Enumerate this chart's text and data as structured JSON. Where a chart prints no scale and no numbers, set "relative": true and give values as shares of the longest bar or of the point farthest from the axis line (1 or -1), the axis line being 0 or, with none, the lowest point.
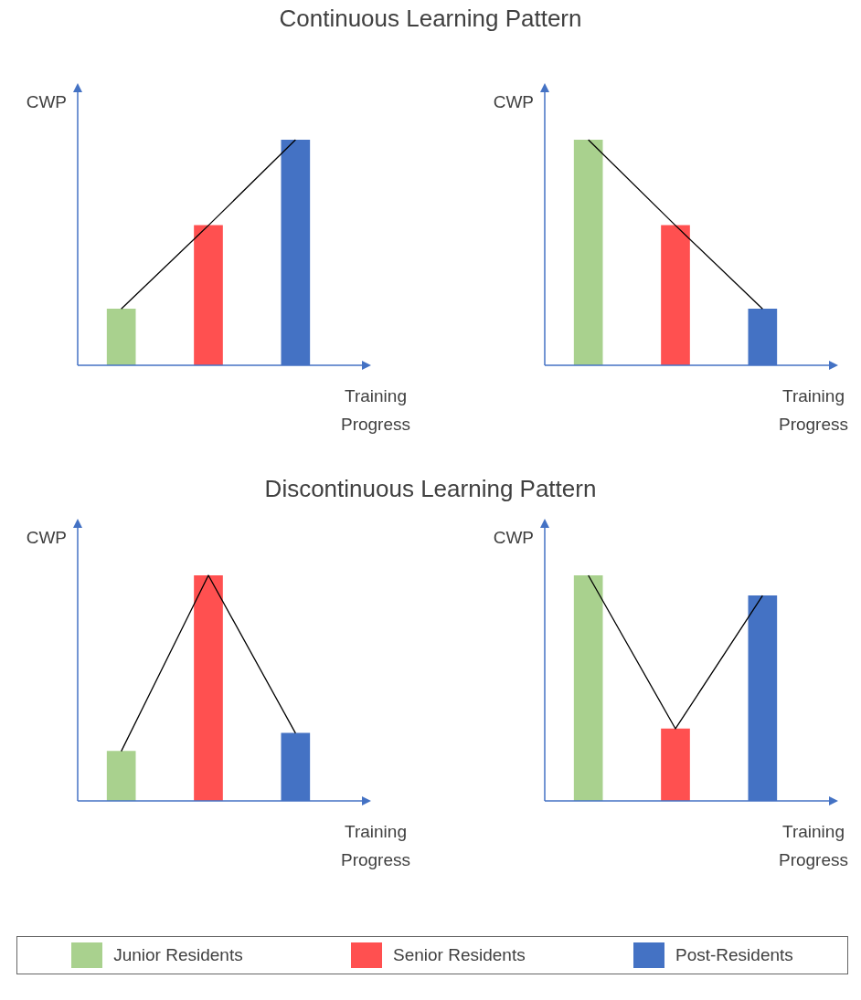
{
  "chart_data": [
    {
      "type": "bar",
      "title": "Continuous Learning Pattern",
      "xlabel": "Training Progress",
      "ylabel": "CWP",
      "relative": true,
      "categories": [
        null,
        null,
        null
      ],
      "values": [
        0.25,
        0.62,
        1
      ],
      "colors": [
        "#a9d18e",
        "#ff5050",
        "#4472c4"
      ]
    },
    {
      "type": "bar",
      "xlabel": "Training Progress",
      "ylabel": "CWP",
      "relative": true,
      "categories": [
        null,
        null,
        null
      ],
      "values": [
        1,
        0.62,
        0.25
      ],
      "colors": [
        "#a9d18e",
        "#ff5050",
        "#4472c4"
      ]
    },
    {
      "type": "bar",
      "title": "Discontinuous Learning Pattern",
      "xlabel": "Training Progress",
      "ylabel": "CWP",
      "relative": true,
      "categories": [
        null,
        null,
        null
      ],
      "values": [
        0.22,
        1,
        0.3
      ],
      "colors": [
        "#a9d18e",
        "#ff5050",
        "#4472c4"
      ]
    },
    {
      "type": "bar",
      "xlabel": "Training Progress",
      "ylabel": "CWP",
      "relative": true,
      "categories": [
        null,
        null,
        null
      ],
      "values": [
        1,
        0.32,
        0.91
      ],
      "colors": [
        "#a9d18e",
        "#ff5050",
        "#4472c4"
      ]
    },
    {
      "type": "other",
      "categories": [
        "Junior Residents",
        "Senior Residents",
        "Post-Residents"
      ],
      "colors": [
        "#a9d18e",
        "#ff5050",
        "#4472c4"
      ]
    }
  ]
}
